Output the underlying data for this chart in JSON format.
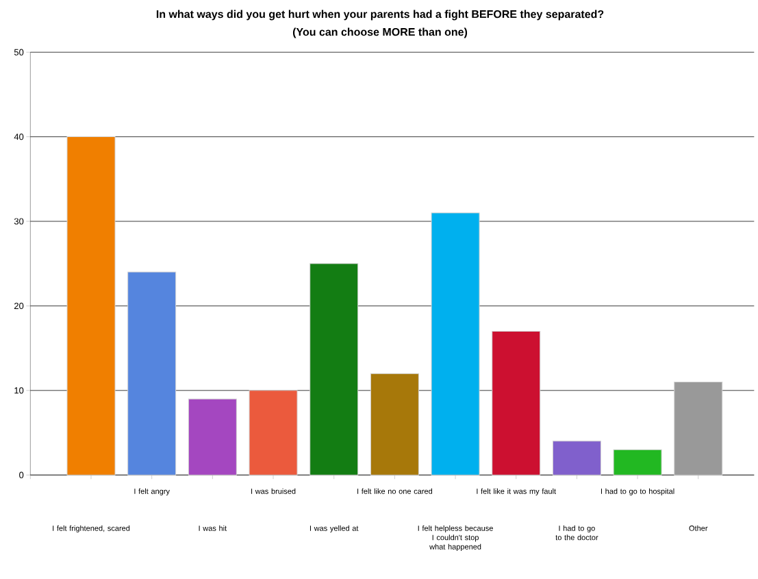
{
  "chart_data": {
    "type": "bar",
    "title": "In what ways did you get hurt when your parents had a fight BEFORE they separated?",
    "subtitle": "(You can choose MORE than one)",
    "categories": [
      "I felt frightened, scared",
      "I felt angry",
      "I was hit",
      "I was bruised",
      "I was yelled at",
      "I felt like no one cared",
      "I felt helpless because I couldn't stop what happened",
      "I felt like it was my fault",
      "I had to go to the doctor",
      "I had to go to hospital",
      "Other"
    ],
    "values": [
      40,
      24,
      9,
      10,
      25,
      12,
      31,
      17,
      4,
      3,
      11
    ],
    "colors": [
      "#f07f00",
      "#5585de",
      "#a447c0",
      "#eb5a3d",
      "#137d13",
      "#a7780a",
      "#00b0ee",
      "#cc1030",
      "#8060cc",
      "#22b822",
      "#999999"
    ],
    "ylim": [
      0,
      50
    ],
    "yticks": [
      0,
      10,
      20,
      30,
      40,
      50
    ],
    "grid": "y"
  }
}
